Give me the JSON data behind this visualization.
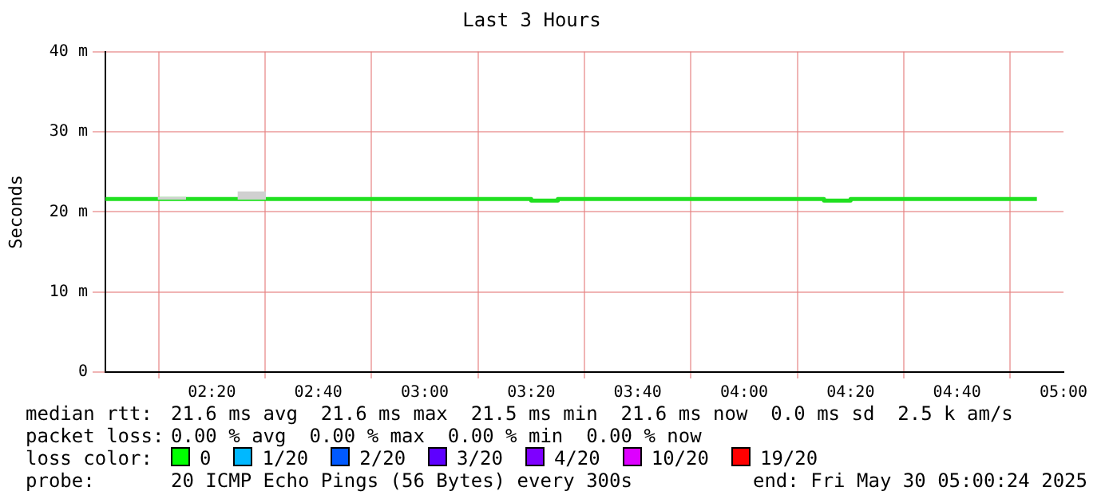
{
  "chart_data": {
    "type": "step",
    "title": "Last 3 Hours",
    "ylabel": "Seconds",
    "xlim": [
      2,
      5
    ],
    "xticks": [
      {
        "value": 2.3333,
        "label": "02:20"
      },
      {
        "value": 2.6667,
        "label": "02:40"
      },
      {
        "value": 3,
        "label": "03:00"
      },
      {
        "value": 3.3333,
        "label": "03:20"
      },
      {
        "value": 3.6667,
        "label": "03:40"
      },
      {
        "value": 4,
        "label": "04:00"
      },
      {
        "value": 4.3333,
        "label": "04:20"
      },
      {
        "value": 4.6667,
        "label": "04:40"
      },
      {
        "value": 5,
        "label": "05:00"
      }
    ],
    "ylim": [
      0,
      40
    ],
    "yticks": [
      {
        "value": 0,
        "label": "0"
      },
      {
        "value": 10,
        "label": "10 m"
      },
      {
        "value": 20,
        "label": "20 m"
      },
      {
        "value": 30,
        "label": "30 m"
      },
      {
        "value": 40,
        "label": "40 m"
      }
    ],
    "grid": true,
    "legend": false,
    "series": [
      {
        "type": "bar",
        "color": "#d0d0d0",
        "x": [
          2.2083,
          2.4583
        ],
        "base": [
          21.6,
          21.6
        ],
        "values": [
          0.2,
          0.9
        ]
      },
      {
        "color": "#20e020",
        "x": [
          2,
          3.3333,
          3.4167,
          4.25,
          4.3333,
          4.9167
        ],
        "values": [
          21.6,
          21.4,
          21.6,
          21.4,
          21.6,
          21.6
        ]
      }
    ],
    "annotations": [
      "median rtt:",
      "21.6 ms avg  21.6 ms max  21.5 ms min  21.6 ms now  0.0 ms sd  2.5 k am/s",
      "packet loss:",
      "0.00 % avg  0.00 % max  0.00 % min  0.00 % now",
      "loss color:",
      "0",
      "1/20",
      "2/20",
      "3/20",
      "4/20",
      "10/20",
      "19/20",
      "probe:",
      "20 ICMP Echo Pings (56 Bytes) every 300s",
      "end: Fri May 30 05:00:24 2025"
    ]
  }
}
